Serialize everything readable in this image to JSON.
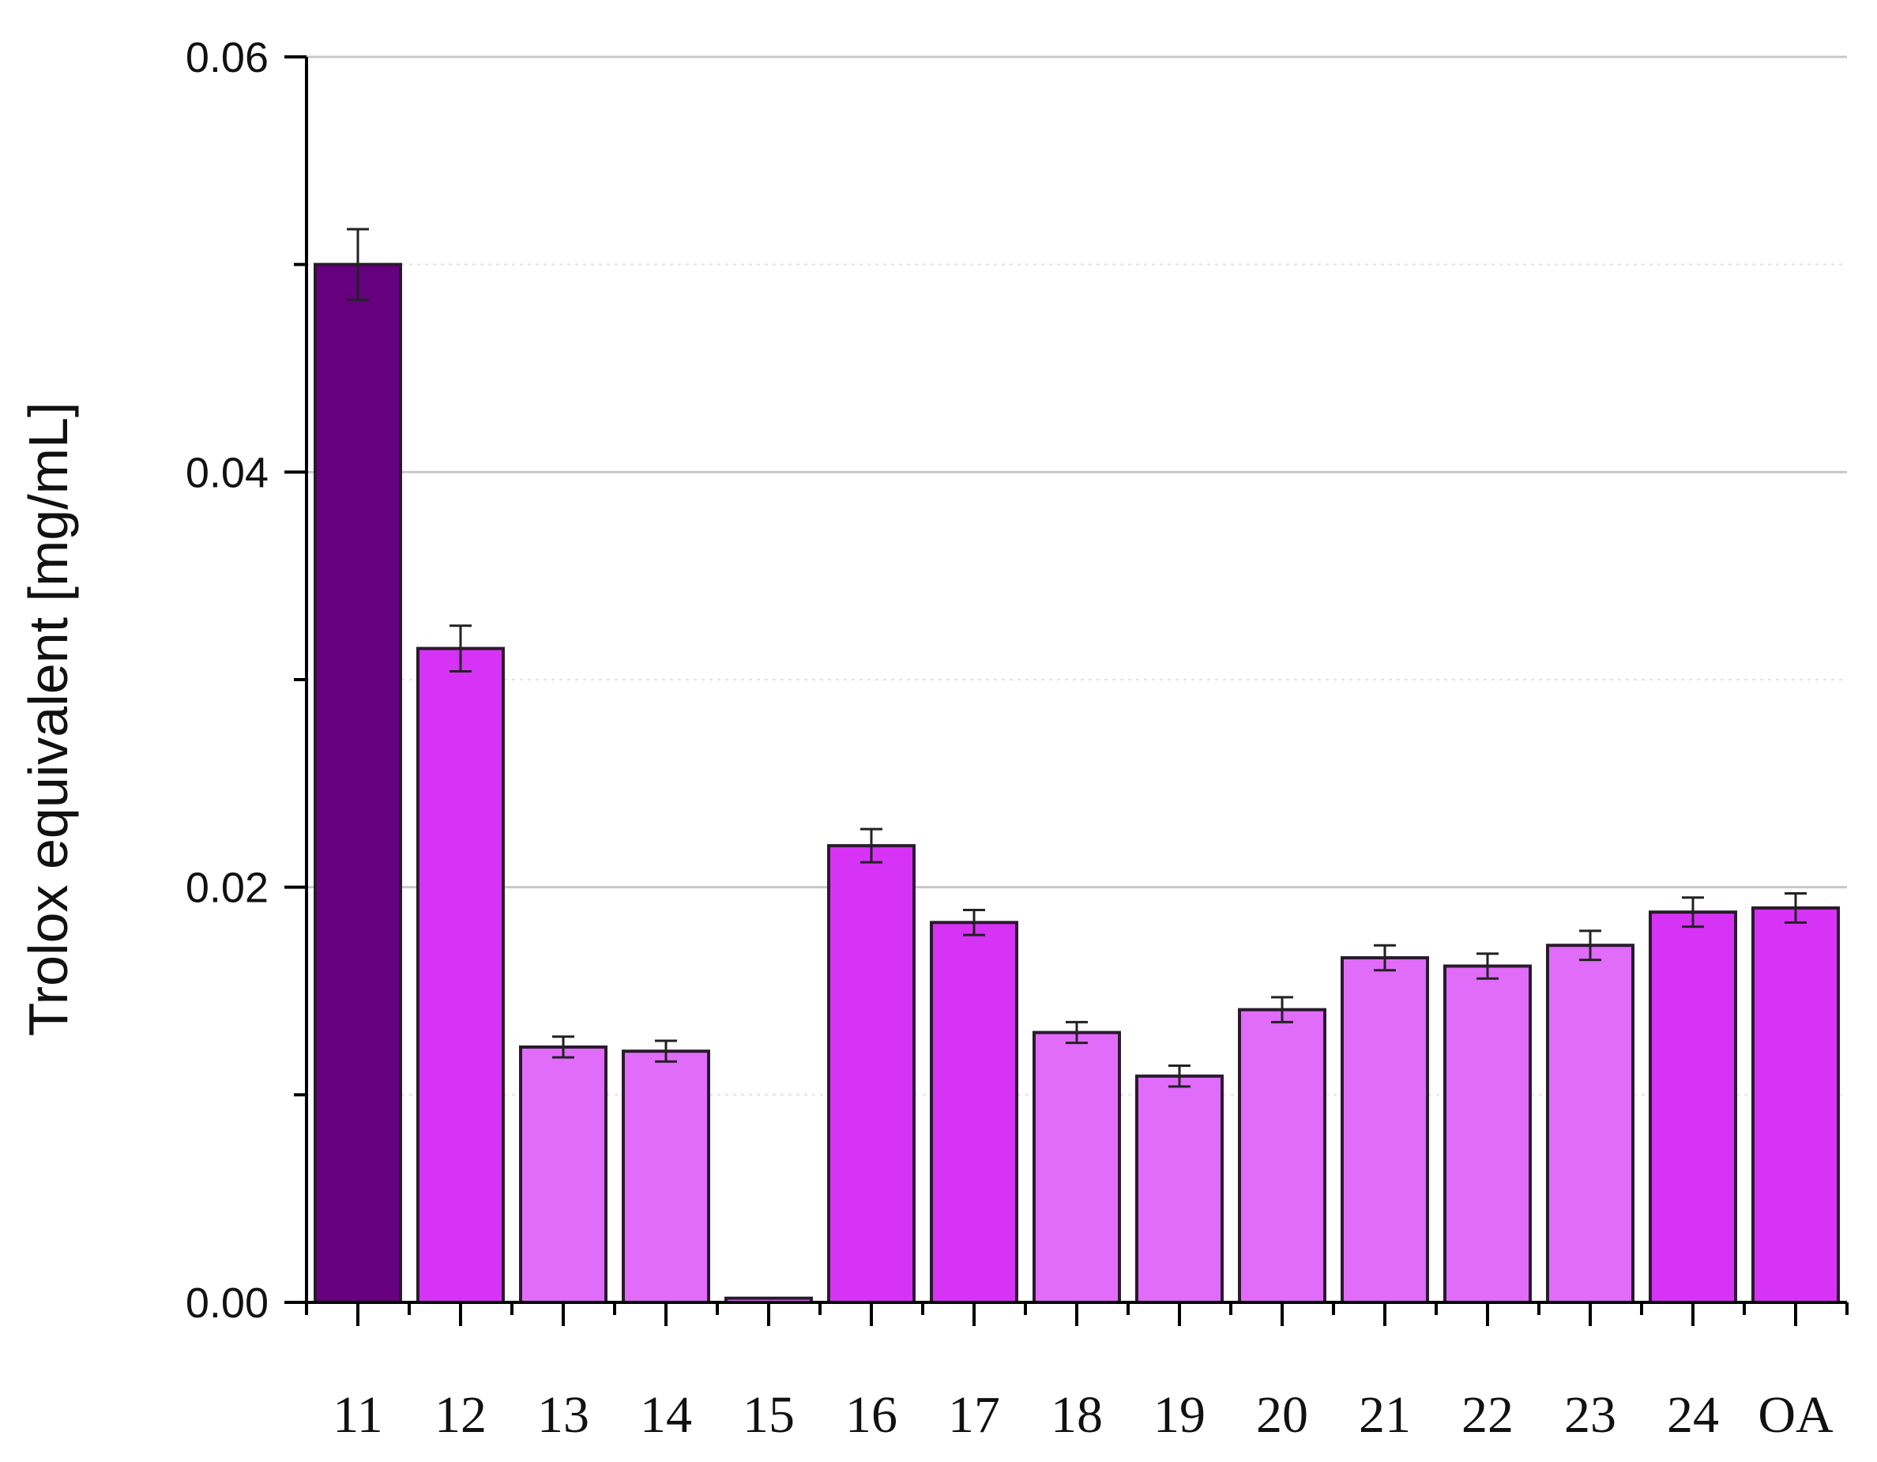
{
  "chart_data": {
    "type": "bar",
    "title": "",
    "xlabel": "",
    "ylabel": "Trolox equivalent [mg/mL]",
    "ylim": [
      0,
      0.06
    ],
    "yticks": [
      "0.00",
      "0.02",
      "0.04",
      "0.06"
    ],
    "ytick_values": [
      0,
      0.02,
      0.04,
      0.06
    ],
    "minor_yticks": [
      0.01,
      0.03,
      0.05
    ],
    "grid": "horizontal",
    "categories": [
      "11",
      "12",
      "13",
      "14",
      "15",
      "16",
      "17",
      "18",
      "19",
      "20",
      "21",
      "22",
      "23",
      "24",
      "OA"
    ],
    "values": [
      0.05,
      0.0315,
      0.0123,
      0.0121,
      0.0002,
      0.022,
      0.0183,
      0.013,
      0.0109,
      0.0141,
      0.0166,
      0.0162,
      0.0172,
      0.0188,
      0.019
    ],
    "errors": [
      0.0017,
      0.0011,
      0.0005,
      0.0005,
      0.0,
      0.0008,
      0.0006,
      0.0005,
      0.0005,
      0.0006,
      0.0006,
      0.0006,
      0.0007,
      0.0007,
      0.0007
    ],
    "bar_colors": [
      "#66007f",
      "#d733f7",
      "#e06cf9",
      "#e06cf9",
      "#e06cf9",
      "#d733f7",
      "#d733f7",
      "#e06cf9",
      "#e06cf9",
      "#e06cf9",
      "#e06cf9",
      "#e06cf9",
      "#e06cf9",
      "#d733f7",
      "#d733f7"
    ]
  }
}
